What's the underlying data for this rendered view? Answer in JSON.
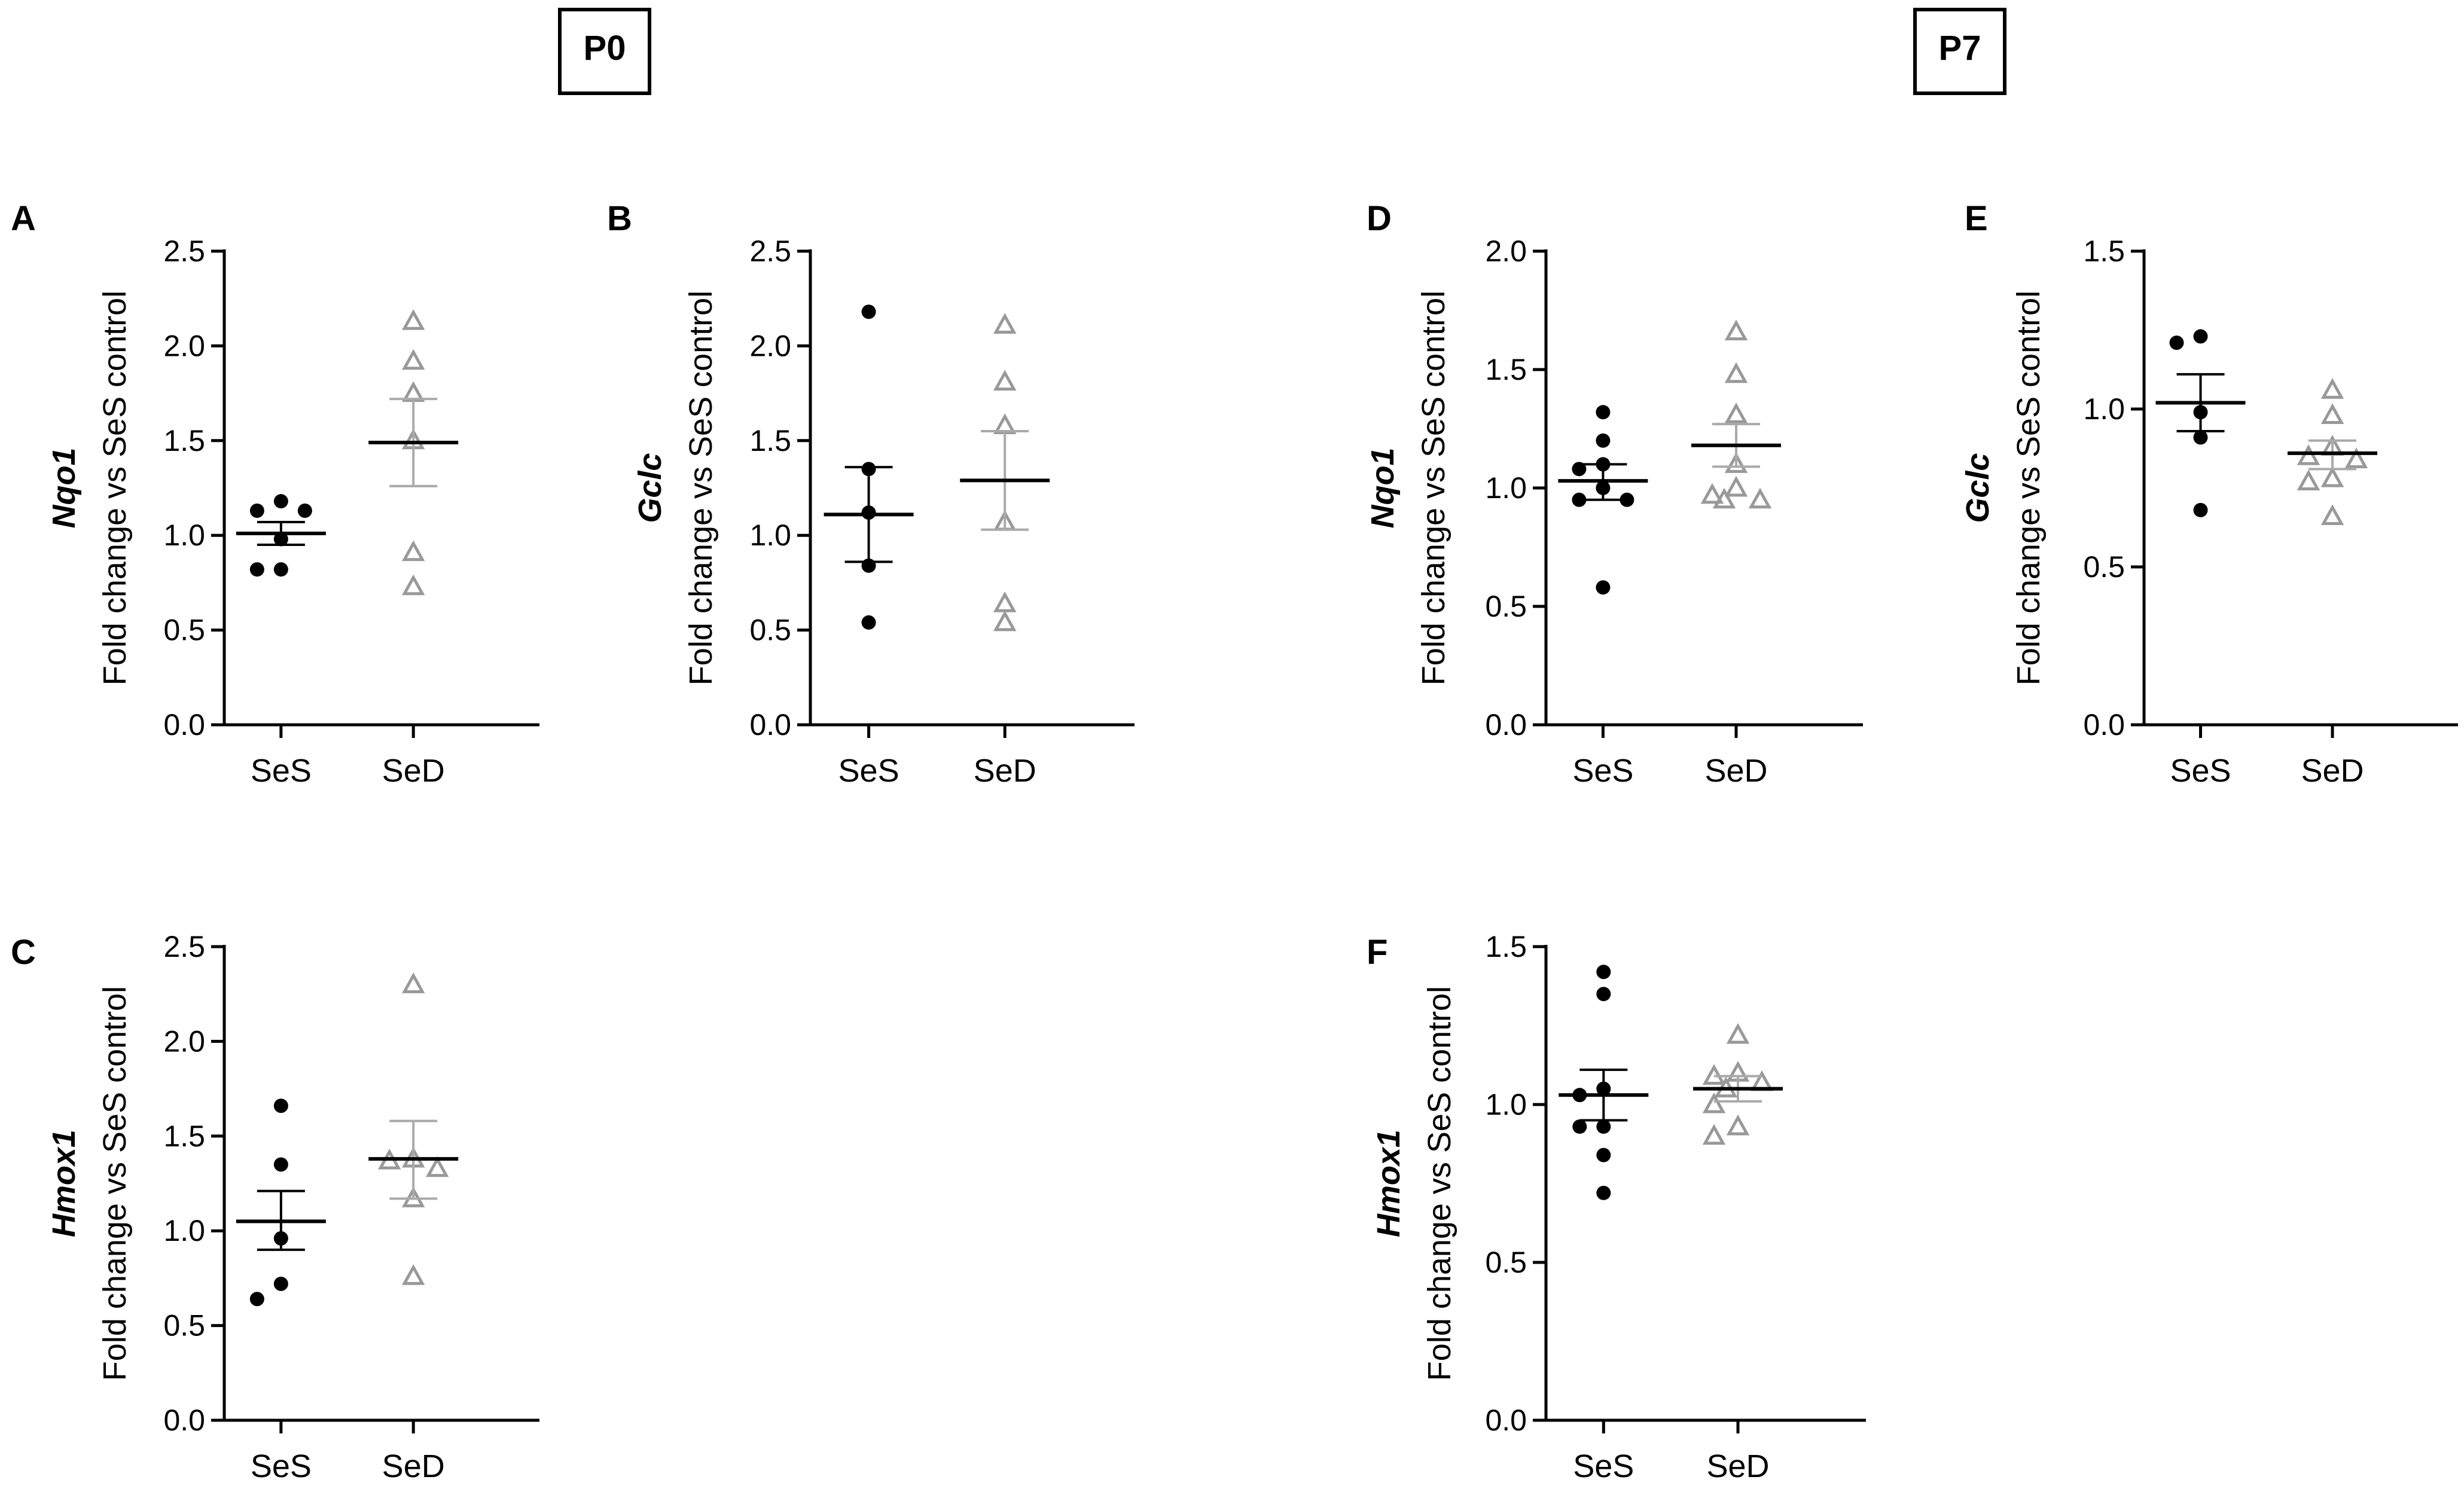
{
  "period_labels": [
    "P0",
    "P7"
  ],
  "chart_data": [
    {
      "panel": "A",
      "type": "scatter",
      "period": "P0",
      "gene": "Nqo1",
      "ylabel": "Fold change vs SeS control",
      "categories": [
        "SeS",
        "SeD"
      ],
      "ylim": [
        0,
        2.5
      ],
      "yticks": [
        "0.0",
        "0.5",
        "1.0",
        "1.5",
        "2.0",
        "2.5"
      ],
      "series": [
        {
          "name": "SeS",
          "marker": "circle",
          "color": "#000000",
          "values": [
            1.18,
            1.13,
            1.13,
            0.98,
            0.82,
            0.82
          ],
          "mean": 1.01,
          "sem": [
            0.95,
            1.07
          ]
        },
        {
          "name": "SeD",
          "marker": "triangle",
          "color": "#999999",
          "values": [
            2.13,
            1.92,
            1.75,
            1.5,
            0.91,
            0.73
          ],
          "mean": 1.49,
          "sem": [
            1.26,
            1.72
          ]
        }
      ]
    },
    {
      "panel": "B",
      "type": "scatter",
      "period": "P0",
      "gene": "Gclc",
      "ylabel": "Fold change vs SeS control",
      "categories": [
        "SeS",
        "SeD"
      ],
      "ylim": [
        0,
        2.5
      ],
      "yticks": [
        "0.0",
        "0.5",
        "1.0",
        "1.5",
        "2.0",
        "2.5"
      ],
      "series": [
        {
          "name": "SeS",
          "marker": "circle",
          "color": "#000000",
          "values": [
            2.18,
            1.35,
            1.12,
            0.84,
            0.54
          ],
          "mean": 1.11,
          "sem": [
            0.86,
            1.36
          ]
        },
        {
          "name": "SeD",
          "marker": "triangle",
          "color": "#999999",
          "values": [
            2.11,
            1.81,
            1.58,
            1.07,
            0.64,
            0.54
          ],
          "mean": 1.29,
          "sem": [
            1.03,
            1.55
          ]
        }
      ]
    },
    {
      "panel": "C",
      "type": "scatter",
      "period": "P0",
      "gene": "Hmox1",
      "ylabel": "Fold change vs SeS control",
      "categories": [
        "SeS",
        "SeD"
      ],
      "ylim": [
        0,
        2.5
      ],
      "yticks": [
        "0.0",
        "0.5",
        "1.0",
        "1.5",
        "2.0",
        "2.5"
      ],
      "series": [
        {
          "name": "SeS",
          "marker": "circle",
          "color": "#000000",
          "values": [
            1.66,
            1.35,
            0.96,
            0.72,
            0.64
          ],
          "mean": 1.05,
          "sem": [
            0.9,
            1.21
          ]
        },
        {
          "name": "SeD",
          "marker": "triangle",
          "color": "#999999",
          "values": [
            2.3,
            1.38,
            1.37,
            1.33,
            1.17,
            0.76
          ],
          "mean": 1.38,
          "sem": [
            1.17,
            1.58
          ]
        }
      ]
    },
    {
      "panel": "D",
      "type": "scatter",
      "period": "P7",
      "gene": "Nqo1",
      "ylabel": "Fold change vs SeS control",
      "categories": [
        "SeS",
        "SeD"
      ],
      "ylim": [
        0,
        2.0
      ],
      "yticks": [
        "0.0",
        "0.5",
        "1.0",
        "1.5",
        "2.0"
      ],
      "series": [
        {
          "name": "SeS",
          "marker": "circle",
          "color": "#000000",
          "values": [
            1.32,
            1.2,
            1.1,
            1.08,
            1.0,
            0.95,
            0.95,
            0.58
          ],
          "mean": 1.03,
          "sem": [
            0.95,
            1.1
          ]
        },
        {
          "name": "SeD",
          "marker": "triangle",
          "color": "#999999",
          "values": [
            1.66,
            1.48,
            1.31,
            1.1,
            1.0,
            0.97,
            0.95,
            0.95
          ],
          "mean": 1.18,
          "sem": [
            1.09,
            1.27
          ]
        }
      ]
    },
    {
      "panel": "E",
      "type": "scatter",
      "period": "P7",
      "gene": "Gclc",
      "ylabel": "Fold change vs SeS control",
      "categories": [
        "SeS",
        "SeD"
      ],
      "ylim": [
        0,
        1.5
      ],
      "yticks": [
        "0.0",
        "0.5",
        "1.0",
        "1.5"
      ],
      "series": [
        {
          "name": "SeS",
          "marker": "circle",
          "color": "#000000",
          "values": [
            1.23,
            1.21,
            0.99,
            0.91,
            0.68
          ],
          "mean": 1.02,
          "sem": [
            0.93,
            1.11
          ]
        },
        {
          "name": "SeD",
          "marker": "triangle",
          "color": "#999999",
          "values": [
            1.06,
            0.98,
            0.88,
            0.85,
            0.84,
            0.78,
            0.77,
            0.66
          ],
          "mean": 0.86,
          "sem": [
            0.81,
            0.9
          ]
        }
      ]
    },
    {
      "panel": "F",
      "type": "scatter",
      "period": "P7",
      "gene": "Hmox1",
      "ylabel": "Fold change vs SeS control",
      "categories": [
        "SeS",
        "SeD"
      ],
      "ylim": [
        0,
        1.5
      ],
      "yticks": [
        "0.0",
        "0.5",
        "1.0",
        "1.5"
      ],
      "series": [
        {
          "name": "SeS",
          "marker": "circle",
          "color": "#000000",
          "values": [
            1.42,
            1.35,
            1.05,
            1.03,
            0.93,
            0.93,
            0.84,
            0.72
          ],
          "mean": 1.03,
          "sem": [
            0.95,
            1.11
          ]
        },
        {
          "name": "SeD",
          "marker": "triangle",
          "color": "#999999",
          "values": [
            1.22,
            1.1,
            1.09,
            1.07,
            1.05,
            1.0,
            0.93,
            0.9
          ],
          "mean": 1.05,
          "sem": [
            1.01,
            1.09
          ]
        }
      ]
    }
  ]
}
